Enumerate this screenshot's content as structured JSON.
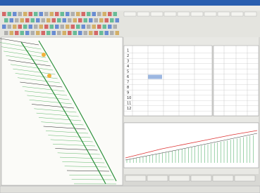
{
  "table": {
    "row_numbers": [
      "1",
      "2",
      "3",
      "4",
      "5",
      "6",
      "7",
      "8",
      "9",
      "10",
      "11",
      "12"
    ]
  }
}
